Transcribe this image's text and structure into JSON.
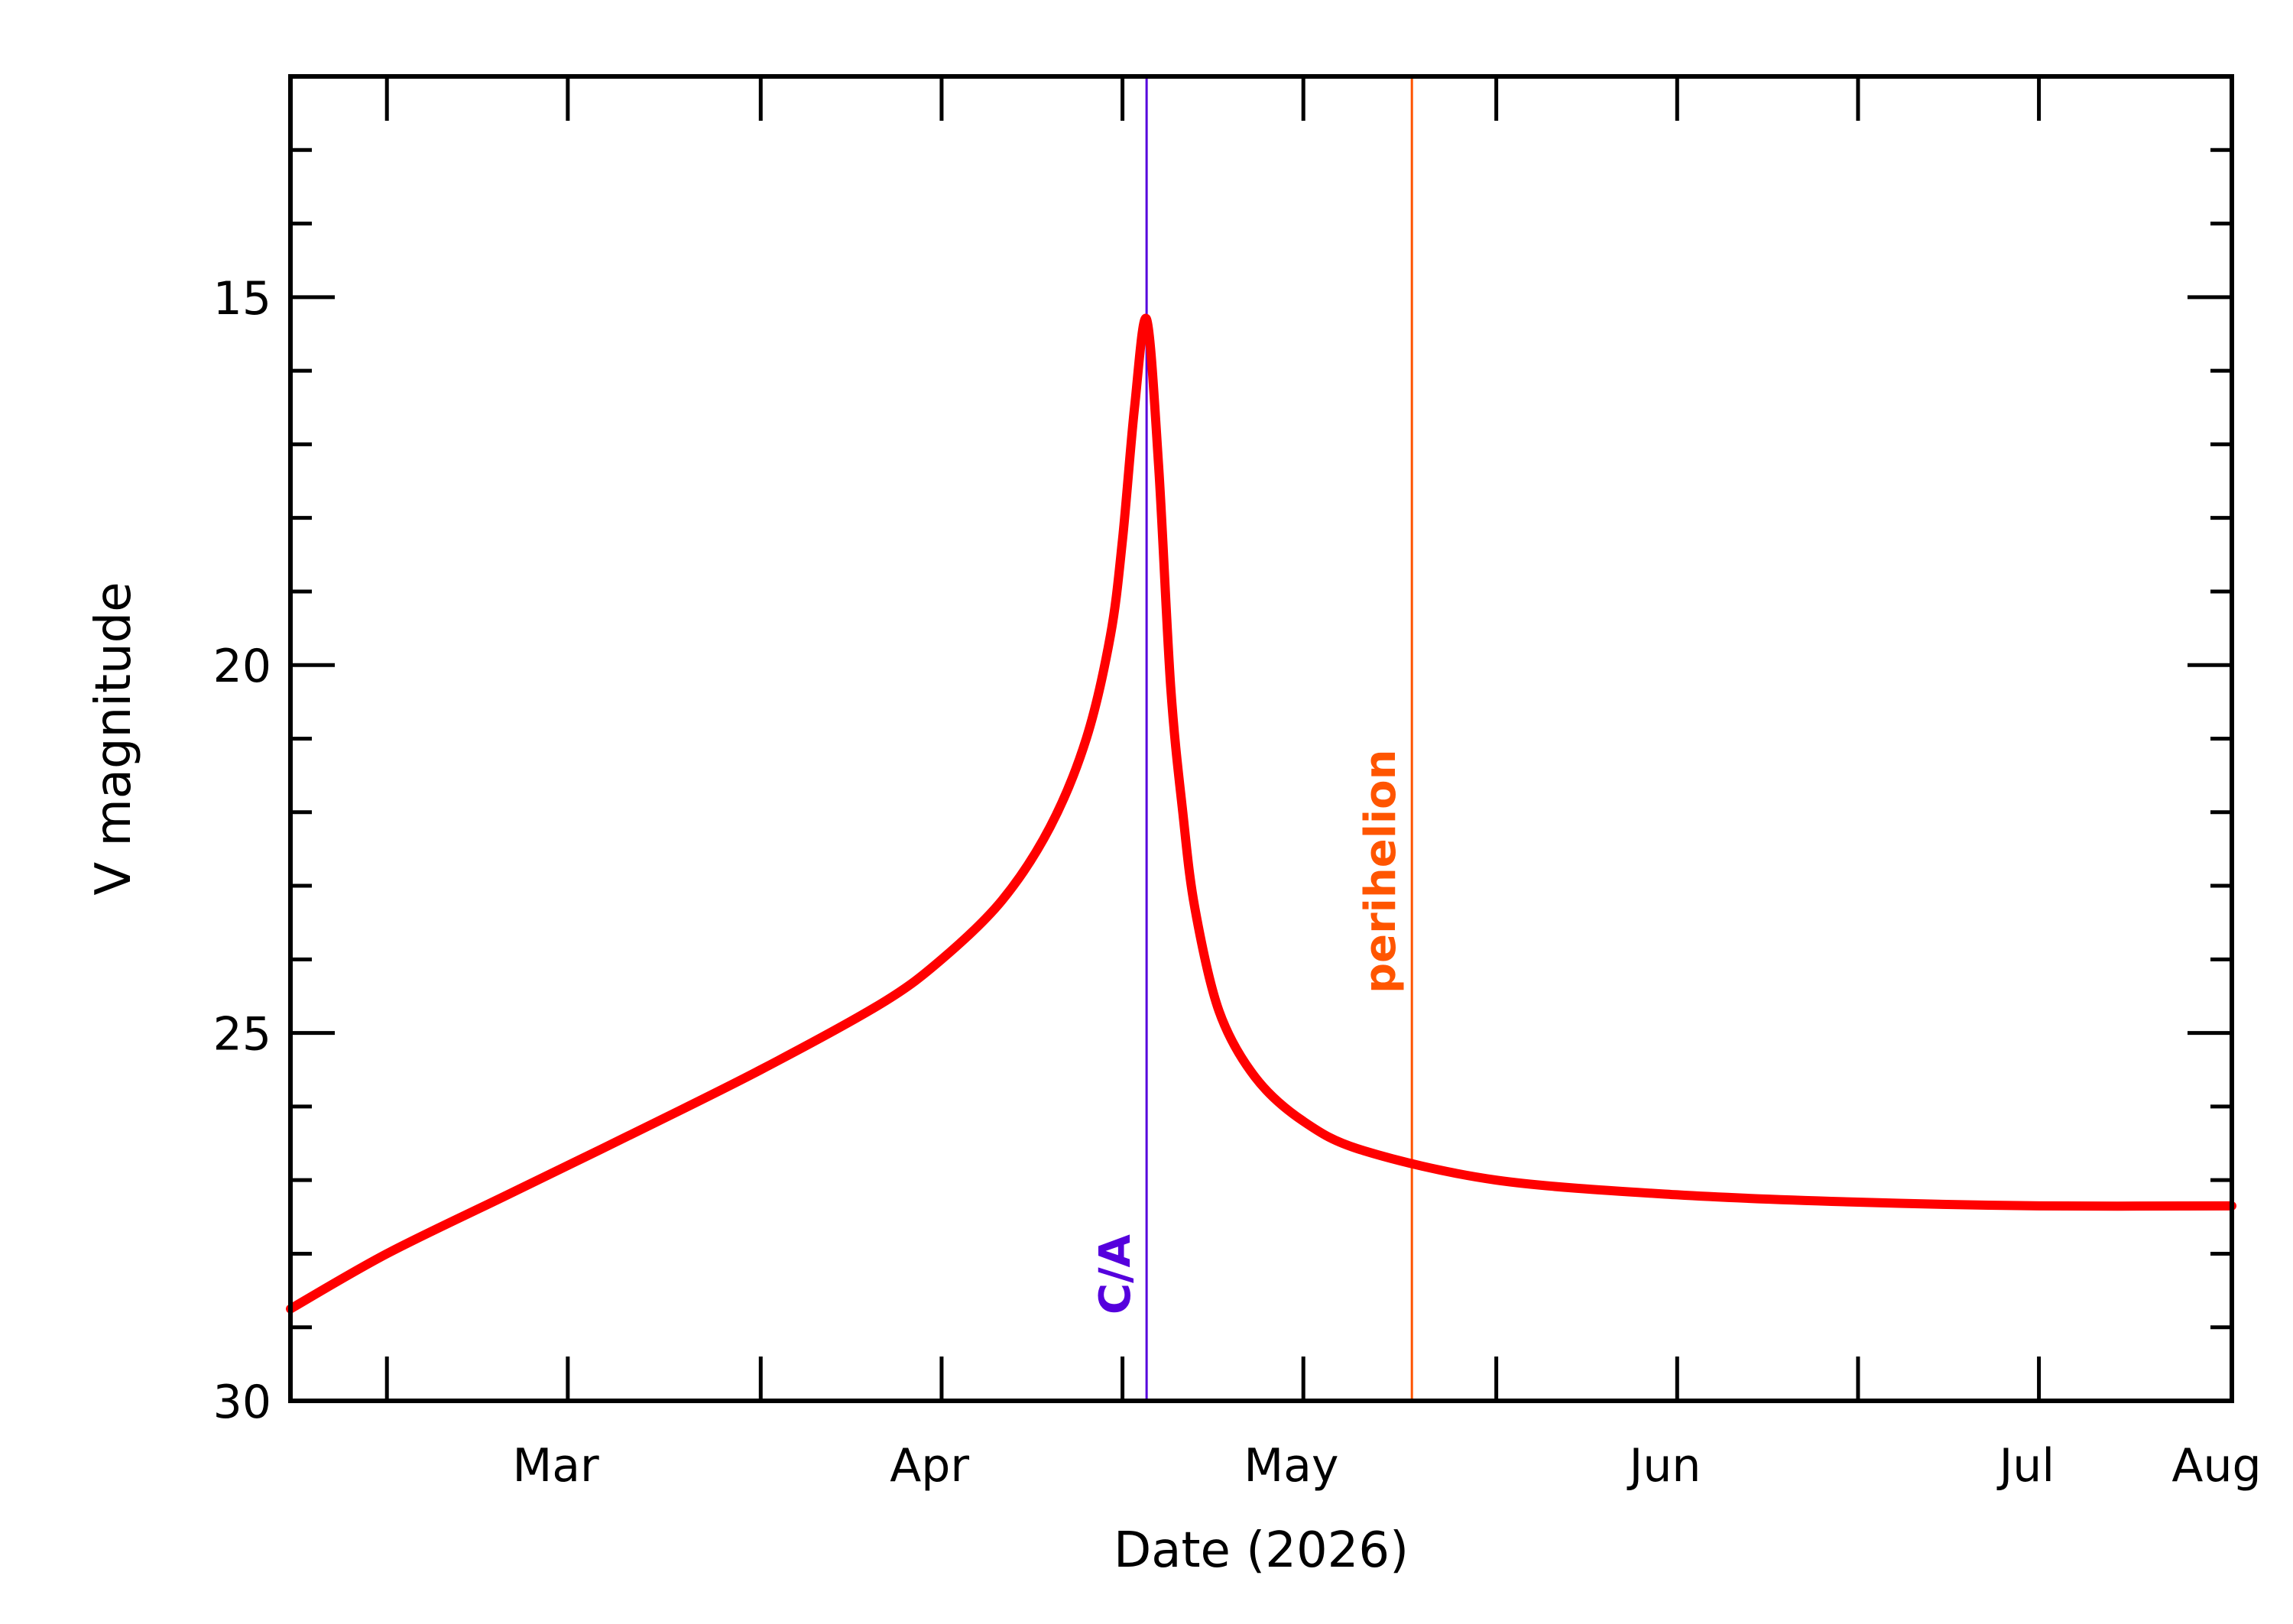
{
  "chart_data": {
    "type": "line",
    "title": "",
    "xlabel": "Date (2026)",
    "ylabel": "V magnitude",
    "x_axis": {
      "type": "date",
      "range": [
        "2026-02-21",
        "2026-08-01"
      ],
      "major_ticks": [
        {
          "date": "2026-03-01",
          "label": "Mar"
        },
        {
          "date": "2026-04-01",
          "label": "Apr"
        },
        {
          "date": "2026-05-01",
          "label": "May"
        },
        {
          "date": "2026-06-01",
          "label": "Jun"
        },
        {
          "date": "2026-07-01",
          "label": "Jul"
        },
        {
          "date": "2026-08-01",
          "label": "Aug"
        }
      ],
      "minor_ticks": [
        "2026-03-01",
        "2026-03-16",
        "2026-04-01",
        "2026-04-16",
        "2026-05-01",
        "2026-05-16",
        "2026-06-01",
        "2026-06-16",
        "2026-07-01",
        "2026-07-16"
      ]
    },
    "y_axis": {
      "range": [
        12,
        30
      ],
      "reversed": true,
      "major_ticks": [
        15,
        20,
        25,
        30
      ],
      "minor_step": 1
    },
    "grid": false,
    "legend": "none",
    "series": [
      {
        "color": "#ff0000",
        "points": [
          {
            "x": "2026-02-21",
            "y": 28.75
          },
          {
            "x": "2026-03-01",
            "y": 28.0
          },
          {
            "x": "2026-03-11",
            "y": 27.2
          },
          {
            "x": "2026-03-21",
            "y": 26.4
          },
          {
            "x": "2026-04-01",
            "y": 25.5
          },
          {
            "x": "2026-04-11",
            "y": 24.6
          },
          {
            "x": "2026-04-16",
            "y": 24.0
          },
          {
            "x": "2026-04-21",
            "y": 23.2
          },
          {
            "x": "2026-04-25",
            "y": 22.2
          },
          {
            "x": "2026-04-28",
            "y": 21.0
          },
          {
            "x": "2026-04-30",
            "y": 19.6
          },
          {
            "x": "2026-05-01",
            "y": 18.3
          },
          {
            "x": "2026-05-02",
            "y": 16.5
          },
          {
            "x": "2026-05-03",
            "y": 15.3
          },
          {
            "x": "2026-05-04",
            "y": 17.3
          },
          {
            "x": "2026-05-05",
            "y": 20.3
          },
          {
            "x": "2026-05-06",
            "y": 22.0
          },
          {
            "x": "2026-05-07",
            "y": 23.3
          },
          {
            "x": "2026-05-09",
            "y": 24.7
          },
          {
            "x": "2026-05-12",
            "y": 25.6
          },
          {
            "x": "2026-05-16",
            "y": 26.2
          },
          {
            "x": "2026-05-21",
            "y": 26.6
          },
          {
            "x": "2026-06-01",
            "y": 27.0
          },
          {
            "x": "2026-06-16",
            "y": 27.2
          },
          {
            "x": "2026-07-01",
            "y": 27.3
          },
          {
            "x": "2026-07-16",
            "y": 27.35
          },
          {
            "x": "2026-08-01",
            "y": 27.35
          }
        ]
      }
    ],
    "markers": [
      {
        "label": "C/A",
        "x": "2026-05-03",
        "color": "#5500dd"
      },
      {
        "label": "perihelion",
        "x": "2026-05-25",
        "color": "#ff5500"
      }
    ]
  }
}
